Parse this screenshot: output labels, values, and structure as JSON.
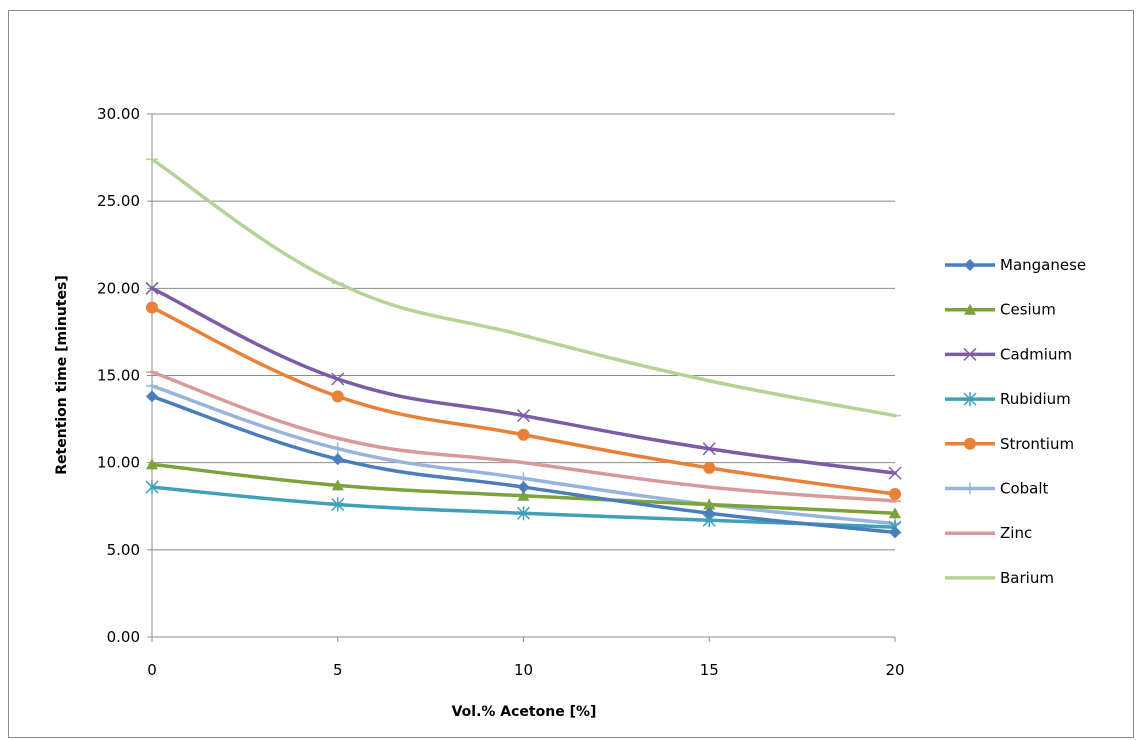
{
  "chart_data": {
    "type": "line",
    "title": "",
    "xlabel": "Vol.% Acetone [%]",
    "ylabel": "Retention time [minutes]",
    "x": [
      0,
      5,
      10,
      15,
      20
    ],
    "xlim": [
      0,
      20
    ],
    "ylim": [
      0,
      30
    ],
    "x_ticks": [
      "0",
      "5",
      "10",
      "15",
      "20"
    ],
    "y_ticks": [
      "0.00",
      "5.00",
      "10.00",
      "15.00",
      "20.00",
      "25.00",
      "30.00"
    ],
    "grid": "horizontal",
    "legend_position": "right",
    "smooth": true,
    "series": [
      {
        "name": "Manganese",
        "color": "#4A7EBB",
        "marker": "diamond",
        "values": [
          13.8,
          10.2,
          8.6,
          7.1,
          6.0
        ]
      },
      {
        "name": "Cesium",
        "color": "#7BA33C",
        "marker": "triangle",
        "values": [
          9.9,
          8.7,
          8.1,
          7.6,
          7.1
        ]
      },
      {
        "name": "Cadmium",
        "color": "#7D5BA6",
        "marker": "x",
        "values": [
          20.0,
          14.8,
          12.7,
          10.8,
          9.4
        ]
      },
      {
        "name": "Rubidium",
        "color": "#3FA0B8",
        "marker": "star",
        "values": [
          8.6,
          7.6,
          7.1,
          6.7,
          6.3
        ]
      },
      {
        "name": "Strontium",
        "color": "#E8803A",
        "marker": "circle",
        "values": [
          18.9,
          13.8,
          11.6,
          9.7,
          8.2
        ]
      },
      {
        "name": "Cobalt",
        "color": "#98B4DE",
        "marker": "plus",
        "values": [
          14.4,
          10.8,
          9.1,
          7.6,
          6.5
        ]
      },
      {
        "name": "Zinc",
        "color": "#D9999A",
        "marker": "dash",
        "values": [
          15.2,
          11.4,
          10.0,
          8.6,
          7.8
        ]
      },
      {
        "name": "Barium",
        "color": "#B5D394",
        "marker": "dash",
        "values": [
          27.4,
          20.3,
          17.3,
          14.7,
          12.7
        ]
      }
    ]
  }
}
